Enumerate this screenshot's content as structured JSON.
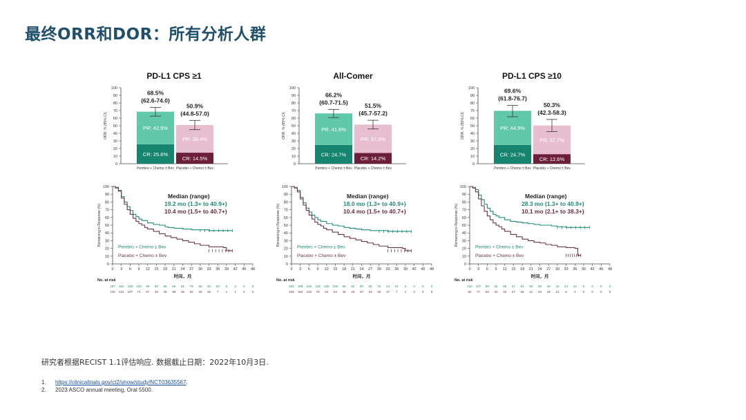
{
  "title": "最终ORR和DOR：所有分析人群",
  "note": "研究者根据RECIST 1.1评估响应. 数据截止日期：2022年10月3日.",
  "references": [
    {
      "num": "1.",
      "text": "https://clinicaltrials.gov/ct2/show/study/NCT03635567",
      "suffix": ".",
      "is_link": true
    },
    {
      "num": "2.",
      "text": "2023 ASCO annual meeting, Oral 5500.",
      "suffix": "",
      "is_link": false
    }
  ],
  "colors": {
    "pembro_cr": "#17846f",
    "pembro_pr": "#62c8aa",
    "placebo_cr": "#6b1f3a",
    "placebo_pr": "#e8bfd0",
    "pembro_line": "#1e8a73",
    "placebo_line": "#6b3348",
    "median_pembro": "#1e8a73",
    "median_placebo": "#6b2a40",
    "axis": "#444444"
  },
  "chart_data": [
    {
      "type": "bar",
      "title": "PD-L1 CPS ≥1",
      "ylabel": "ORR, % (95% CI)",
      "ylim": [
        0,
        100
      ],
      "yticks": [
        0,
        10,
        20,
        30,
        40,
        50,
        60,
        70,
        80,
        90,
        100
      ],
      "categories": [
        "Pembro + Chemo ± Bev",
        "Placebo + Chemo ± Bev"
      ],
      "orr": [
        68.5,
        50.9
      ],
      "orr_labels": [
        "68.5%",
        "50.9%"
      ],
      "ci_labels": [
        "(62.6-74.0)",
        "(44.8-57.0)"
      ],
      "ci": [
        [
          62.6,
          74.0
        ],
        [
          44.8,
          57.0
        ]
      ],
      "series": [
        {
          "name": "CR",
          "values": [
            25.6,
            14.5
          ],
          "labels": [
            "CR: 25.6%",
            "CR: 14.5%"
          ]
        },
        {
          "name": "PR",
          "values": [
            42.9,
            36.4
          ],
          "labels": [
            "PR: 42.9%",
            "PR: 36.4%"
          ]
        }
      ]
    },
    {
      "type": "bar",
      "title": "All-Comer",
      "ylabel": "ORR, % (95% CI)",
      "ylim": [
        0,
        100
      ],
      "yticks": [
        0,
        10,
        20,
        30,
        40,
        50,
        60,
        70,
        80,
        90,
        100
      ],
      "categories": [
        "Pembro + Chemo ± Bev",
        "Placebo + Chemo ± Bev"
      ],
      "orr": [
        66.2,
        51.5
      ],
      "orr_labels": [
        "66.2%",
        "51.5%"
      ],
      "ci_labels": [
        "(60.7-71.5)",
        "(45.7-57.2)"
      ],
      "ci": [
        [
          60.7,
          71.5
        ],
        [
          45.7,
          57.2
        ]
      ],
      "series": [
        {
          "name": "CR",
          "values": [
            24.7,
            14.2
          ],
          "labels": [
            "CR: 24.7%",
            "CR: 14.2%"
          ]
        },
        {
          "name": "PR",
          "values": [
            41.6,
            37.3
          ],
          "labels": [
            "PR: 41.6%",
            "PR: 37.3%"
          ]
        }
      ]
    },
    {
      "type": "bar",
      "title": "PD-L1 CPS ≥10",
      "ylabel": "ORR, % (95% CI)",
      "ylim": [
        0,
        100
      ],
      "yticks": [
        0,
        10,
        20,
        30,
        40,
        50,
        60,
        70,
        80,
        90,
        100
      ],
      "categories": [
        "Pembro + Chemo ± Bev",
        "Placebo + Chemo ± Bev"
      ],
      "orr": [
        69.6,
        50.3
      ],
      "orr_labels": [
        "69.6%",
        "50.3%"
      ],
      "ci_labels": [
        "(61.8-76.7)",
        "(42.3-58.3)"
      ],
      "ci": [
        [
          61.8,
          76.7
        ],
        [
          42.3,
          58.3
        ]
      ],
      "series": [
        {
          "name": "CR",
          "values": [
            24.7,
            12.6
          ],
          "labels": [
            "CR: 24.7%",
            "CR: 12.6%"
          ]
        },
        {
          "name": "PR",
          "values": [
            44.9,
            37.7
          ],
          "labels": [
            "PR: 44.9%",
            "PR: 37.7%"
          ]
        }
      ]
    },
    {
      "type": "line",
      "ylabel": "Remaining in Response (%)",
      "xlabel": "时间，月",
      "xlim": [
        0,
        48
      ],
      "ylim": [
        0,
        100
      ],
      "xticks": [
        0,
        3,
        6,
        9,
        12,
        15,
        18,
        21,
        24,
        27,
        30,
        33,
        36,
        39,
        42,
        45,
        48
      ],
      "yticks": [
        0,
        10,
        20,
        30,
        40,
        50,
        60,
        70,
        80,
        90,
        100
      ],
      "median_title": "Median (range)",
      "series": [
        {
          "name": "Pembro + Chemo ± Bev",
          "median": "19.2 mo (1.3+ to 40.9+)",
          "x": [
            0,
            1,
            2,
            3,
            4,
            5,
            6,
            7,
            8,
            9,
            10,
            12,
            14,
            16,
            18,
            19,
            21,
            24,
            27,
            30,
            33,
            36,
            39,
            41
          ],
          "y": [
            100,
            99,
            95,
            87,
            80,
            74,
            69,
            64,
            61,
            58,
            56,
            53,
            51,
            50,
            48,
            47,
            46,
            45,
            44,
            44,
            43,
            43,
            43,
            43
          ]
        },
        {
          "name": "Placebo + Chemo ± Bev",
          "median": "10.4 mo (1.5+ to 40.7+)",
          "x": [
            0,
            1,
            2,
            3,
            4,
            5,
            6,
            7,
            8,
            9,
            10,
            11,
            12,
            14,
            16,
            18,
            20,
            22,
            24,
            26,
            28,
            30,
            33,
            36,
            38,
            39,
            41
          ],
          "y": [
            100,
            98,
            94,
            85,
            77,
            70,
            64,
            59,
            55,
            52,
            50,
            47,
            45,
            42,
            39,
            36,
            34,
            32,
            30,
            28,
            26,
            24,
            22,
            22,
            21,
            17,
            17
          ]
        }
      ],
      "risk_label": "No. at risk",
      "risk_rows": [
        [
          "187",
          "182",
          "148",
          "129",
          "99",
          "83",
          "68",
          "65",
          "81",
          "79",
          "66",
          "40",
          "20",
          "6",
          "3",
          "0",
          "0"
        ],
        [
          "140",
          "134",
          "107",
          "71",
          "57",
          "49",
          "45",
          "39",
          "36",
          "32",
          "25",
          "16",
          "7",
          "1",
          "1",
          "0",
          "0"
        ]
      ]
    },
    {
      "type": "line",
      "ylabel": "Remaining in Response (%)",
      "xlabel": "时间，月",
      "xlim": [
        0,
        48
      ],
      "ylim": [
        0,
        100
      ],
      "xticks": [
        0,
        3,
        6,
        9,
        12,
        15,
        18,
        21,
        24,
        27,
        30,
        33,
        36,
        39,
        42,
        45,
        48
      ],
      "yticks": [
        0,
        10,
        20,
        30,
        40,
        50,
        60,
        70,
        80,
        90,
        100
      ],
      "median_title": "Median (range)",
      "series": [
        {
          "name": "Pembro + Chemo ± Bev",
          "median": "18.0 mo (1.3+ to 40.9+)",
          "x": [
            0,
            1,
            2,
            3,
            4,
            5,
            6,
            7,
            8,
            9,
            10,
            12,
            14,
            16,
            18,
            20,
            22,
            24,
            27,
            30,
            33,
            36,
            39,
            41
          ],
          "y": [
            100,
            99,
            95,
            86,
            79,
            72,
            67,
            63,
            60,
            57,
            55,
            52,
            50,
            49,
            47,
            46,
            45,
            44,
            43,
            43,
            42,
            42,
            42,
            42
          ]
        },
        {
          "name": "Placebo + Chemo ± Bev",
          "median": "10.4 mo (1.5+ to 40.7+)",
          "x": [
            0,
            1,
            2,
            3,
            4,
            5,
            6,
            7,
            8,
            9,
            10,
            11,
            12,
            14,
            16,
            18,
            20,
            22,
            24,
            26,
            28,
            30,
            33,
            36,
            38,
            39,
            41
          ],
          "y": [
            100,
            98,
            93,
            84,
            76,
            69,
            63,
            58,
            54,
            51,
            49,
            46,
            44,
            41,
            38,
            35,
            33,
            31,
            29,
            27,
            25,
            23,
            21,
            21,
            20,
            17,
            17
          ]
        }
      ],
      "risk_label": "No. at risk",
      "risk_rows": [
        [
          "204",
          "198",
          "160",
          "118",
          "109",
          "100",
          "96",
          "82",
          "80",
          "85",
          "72",
          "44",
          "21",
          "6",
          "0",
          "0",
          "0"
        ],
        [
          "159",
          "152",
          "120",
          "79",
          "64",
          "53",
          "48",
          "40",
          "37",
          "33",
          "26",
          "17",
          "7",
          "1",
          "0",
          "0",
          "0"
        ]
      ]
    },
    {
      "type": "line",
      "ylabel": "Remaining in Response (%)",
      "xlabel": "时间，月",
      "xlim": [
        0,
        48
      ],
      "ylim": [
        0,
        100
      ],
      "xticks": [
        0,
        3,
        6,
        9,
        12,
        15,
        18,
        21,
        24,
        27,
        30,
        33,
        36,
        39,
        42,
        45,
        48
      ],
      "yticks": [
        0,
        10,
        20,
        30,
        40,
        50,
        60,
        70,
        80,
        90,
        100
      ],
      "median_title": "Median (range)",
      "series": [
        {
          "name": "Pembro + Chemo ± Bev",
          "median": "28.3 mo (1.3+ to 40.9+)",
          "x": [
            0,
            1,
            2,
            3,
            4,
            5,
            6,
            7,
            8,
            9,
            10,
            12,
            14,
            16,
            18,
            20,
            22,
            24,
            27,
            28,
            30,
            33,
            36,
            39,
            41
          ],
          "y": [
            100,
            99,
            96,
            89,
            83,
            77,
            72,
            68,
            64,
            62,
            60,
            57,
            55,
            54,
            53,
            52,
            51,
            50,
            50,
            49,
            48,
            47,
            47,
            47,
            47
          ]
        },
        {
          "name": "Placebo + Chemo ± Bev",
          "median": "10.1 mo (2.1+ to 38.3+)",
          "x": [
            0,
            1,
            2,
            3,
            4,
            5,
            6,
            7,
            8,
            9,
            10,
            11,
            12,
            14,
            16,
            18,
            20,
            22,
            24,
            26,
            28,
            30,
            33,
            35,
            36,
            37,
            38
          ],
          "y": [
            100,
            98,
            93,
            84,
            75,
            68,
            62,
            57,
            53,
            50,
            48,
            45,
            42,
            38,
            35,
            32,
            30,
            28,
            27,
            25,
            24,
            22,
            21,
            21,
            20,
            11,
            11
          ]
        }
      ],
      "risk_label": "No. at risk",
      "risk_rows": [
        [
          "110",
          "107",
          "88",
          "59",
          "65",
          "57",
          "54",
          "53",
          "50",
          "49",
          "42",
          "24",
          "13",
          "5",
          "0",
          "0",
          "0"
        ],
        [
          "80",
          "77",
          "60",
          "43",
          "32",
          "27",
          "25",
          "21",
          "20",
          "19",
          "13",
          "6",
          "2",
          "0",
          "0",
          "0",
          "0"
        ]
      ]
    }
  ]
}
